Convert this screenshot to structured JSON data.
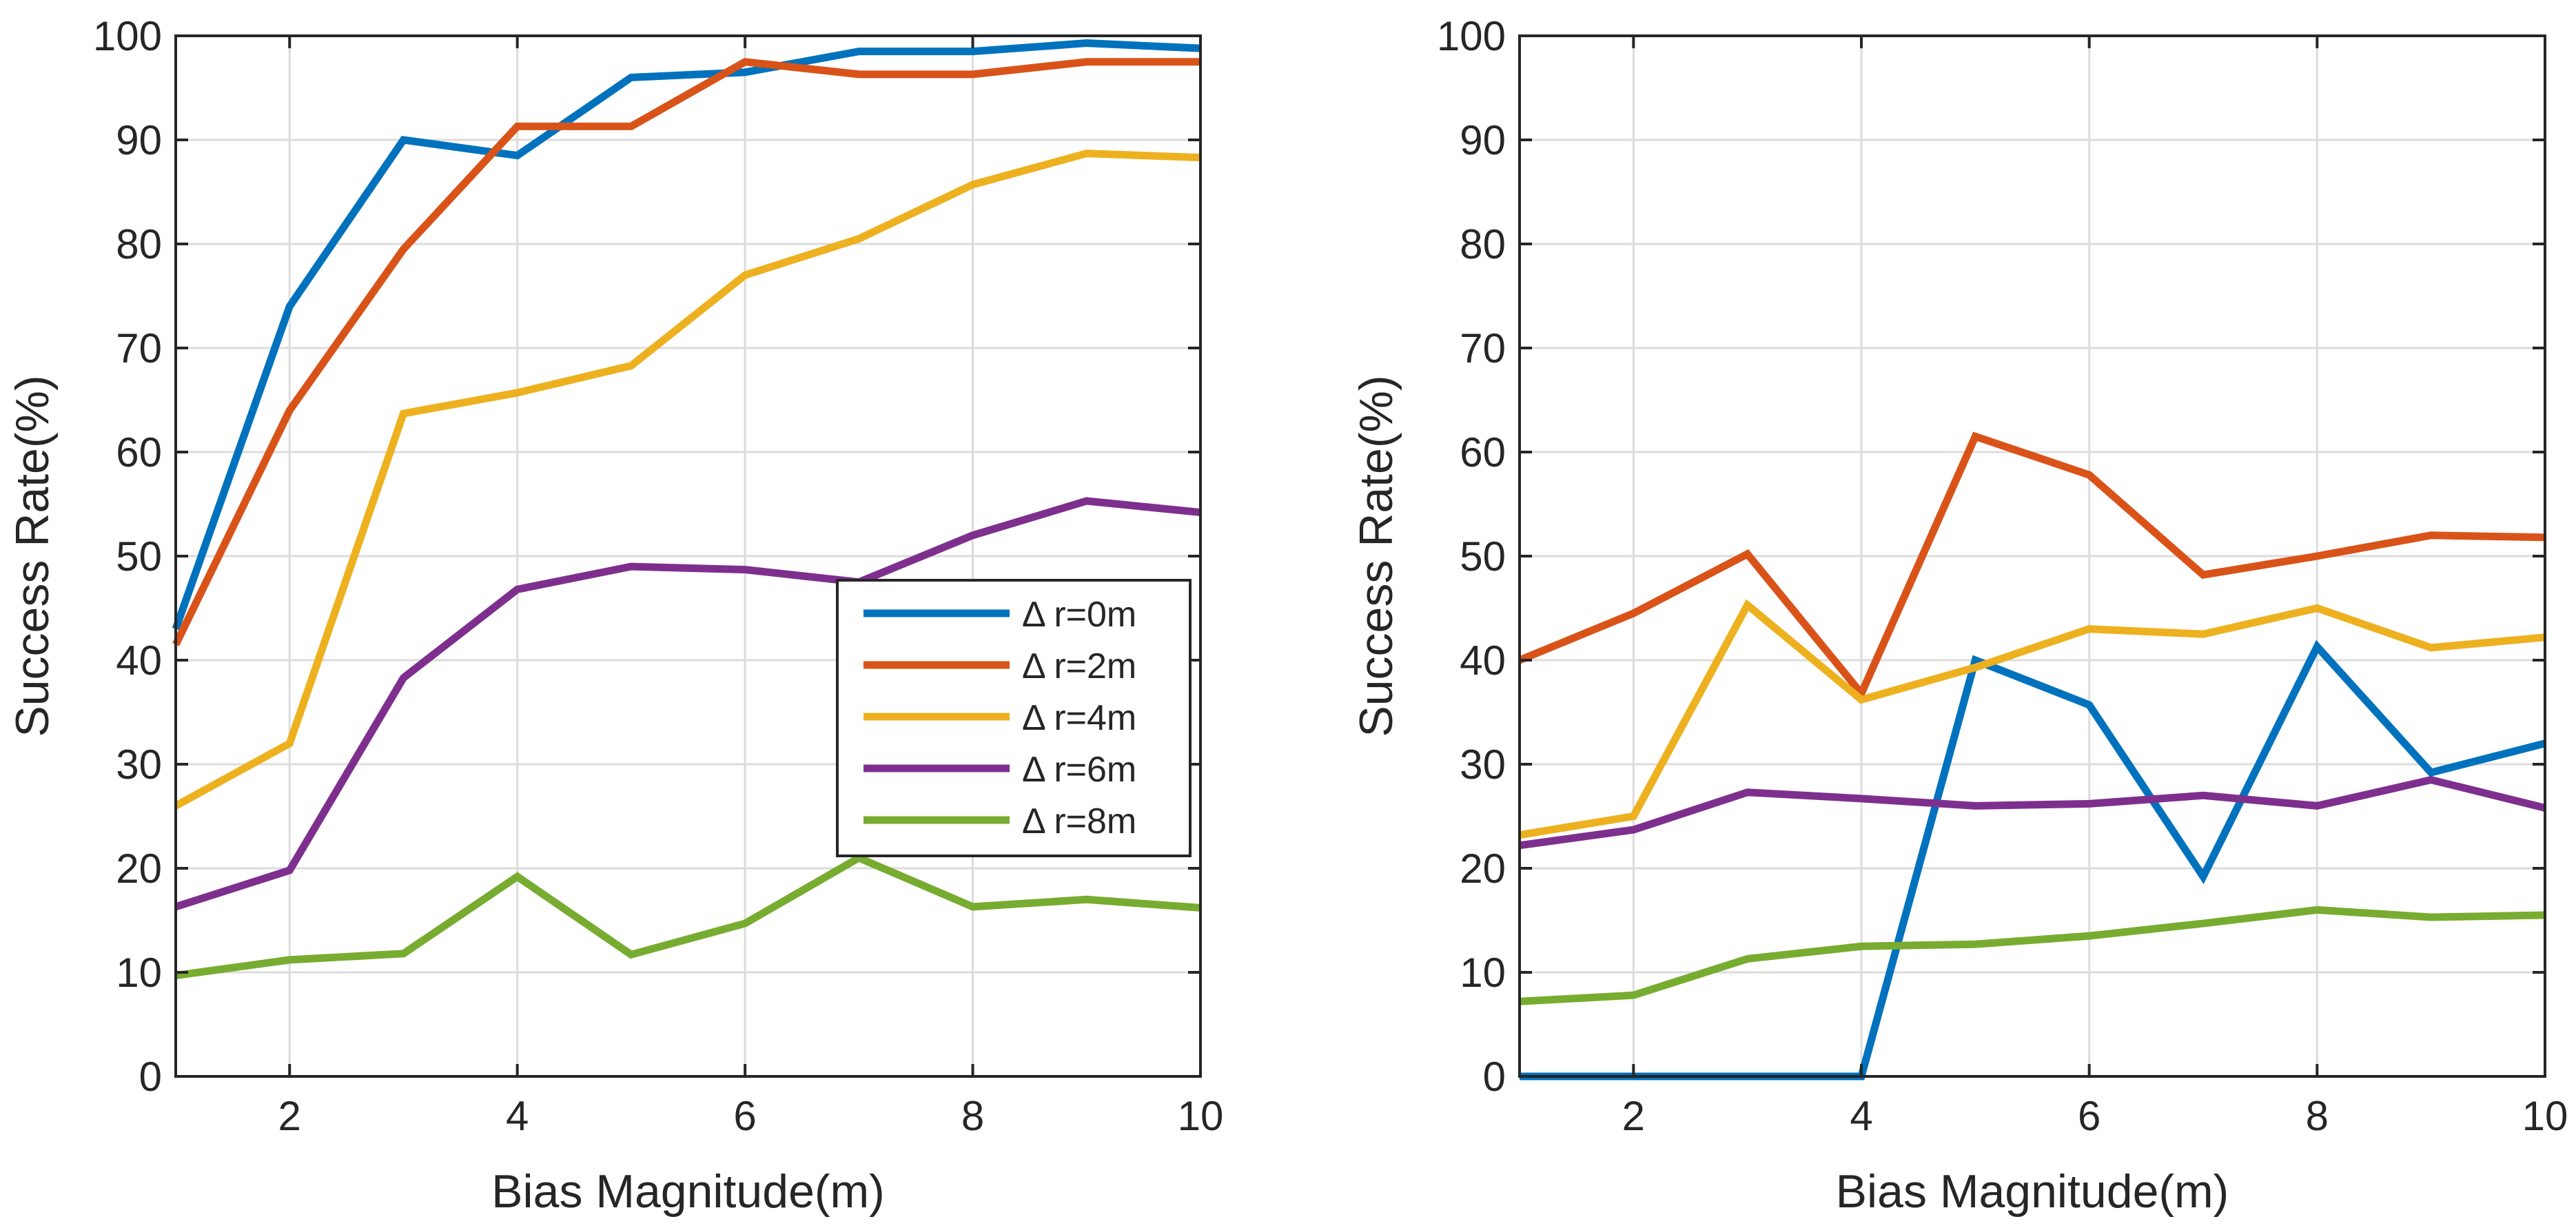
{
  "chart_data": [
    {
      "type": "line",
      "panel": "left",
      "title": "",
      "xlabel": "Bias Magnitude(m)",
      "ylabel": "Success Rate(%)",
      "xlim": [
        1,
        10
      ],
      "ylim": [
        0,
        100
      ],
      "xticks": [
        2,
        4,
        6,
        8,
        10
      ],
      "yticks": [
        0,
        10,
        20,
        30,
        40,
        50,
        60,
        70,
        80,
        90,
        100
      ],
      "grid": true,
      "legend_position": "center-right",
      "x": [
        1,
        2,
        3,
        4,
        5,
        6,
        7,
        8,
        9,
        10
      ],
      "series": [
        {
          "name": "Δ r=0m",
          "color": "#0072BD",
          "values": [
            43,
            74,
            90,
            88.5,
            96,
            96.5,
            98.5,
            98.5,
            99.3,
            98.8
          ]
        },
        {
          "name": "Δ r=2m",
          "color": "#D95319",
          "values": [
            41.5,
            64,
            79.5,
            91.3,
            91.3,
            97.5,
            96.3,
            96.3,
            97.5,
            97.5
          ]
        },
        {
          "name": "Δ r=4m",
          "color": "#EDB120",
          "values": [
            26,
            32,
            63.7,
            65.7,
            68.3,
            77,
            80.5,
            85.7,
            88.7,
            88.3
          ]
        },
        {
          "name": "Δ r=6m",
          "color": "#7E2F8E",
          "values": [
            16.3,
            19.8,
            38.3,
            46.8,
            49,
            48.7,
            47.5,
            52,
            55.3,
            54.2
          ]
        },
        {
          "name": "Δ r=8m",
          "color": "#77AC30",
          "values": [
            9.7,
            11.2,
            11.8,
            19.2,
            11.7,
            14.7,
            21,
            16.3,
            17,
            16.2
          ]
        }
      ]
    },
    {
      "type": "line",
      "panel": "right",
      "title": "",
      "xlabel": "Bias Magnitude(m)",
      "ylabel": "Success Rate(%)",
      "xlim": [
        1,
        10
      ],
      "ylim": [
        0,
        100
      ],
      "xticks": [
        2,
        4,
        6,
        8,
        10
      ],
      "yticks": [
        0,
        10,
        20,
        30,
        40,
        50,
        60,
        70,
        80,
        90,
        100
      ],
      "grid": true,
      "x": [
        1,
        2,
        3,
        4,
        5,
        6,
        7,
        8,
        9,
        10
      ],
      "series": [
        {
          "name": "Δ r=0m",
          "color": "#0072BD",
          "values": [
            0,
            0,
            0,
            0,
            40,
            35.7,
            19.2,
            41.3,
            29.2,
            32
          ]
        },
        {
          "name": "Δ r=2m",
          "color": "#D95319",
          "values": [
            40,
            44.5,
            50.2,
            36.8,
            61.5,
            57.8,
            48.2,
            50,
            52,
            51.8
          ]
        },
        {
          "name": "Δ r=4m",
          "color": "#EDB120",
          "values": [
            23.2,
            25,
            45.3,
            36.2,
            39.3,
            43,
            42.5,
            45,
            41.2,
            42.2
          ]
        },
        {
          "name": "Δ r=6m",
          "color": "#7E2F8E",
          "values": [
            22.2,
            23.7,
            27.3,
            26.7,
            26,
            26.2,
            27,
            26,
            28.5,
            25.8
          ]
        },
        {
          "name": "Δ r=8m",
          "color": "#77AC30",
          "values": [
            7.2,
            7.8,
            11.3,
            12.5,
            12.7,
            13.5,
            14.7,
            16,
            15.3,
            15.5
          ]
        }
      ]
    }
  ]
}
